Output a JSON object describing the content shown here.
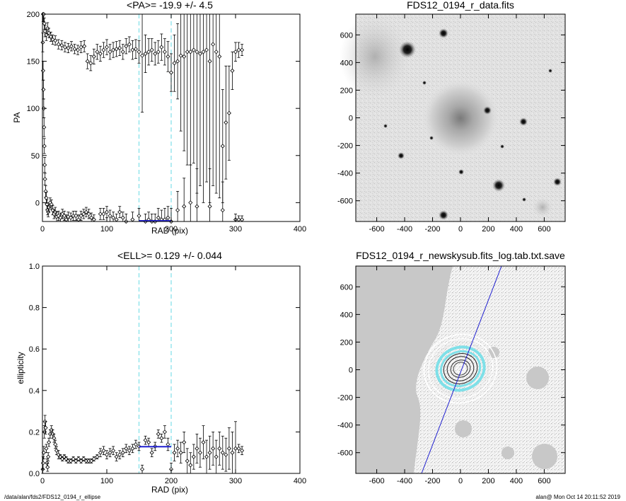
{
  "footer": {
    "path": "/data/alan/fds2/FDS12_0194_r_ellipse",
    "stamp": "alan@  Mon Oct 14 20:11:52 2019"
  },
  "colors": {
    "data": "#000000",
    "fit": "#2020d0",
    "marker": "#7fe0e8",
    "image_bg": "#c8c8c8"
  },
  "chart_data": [
    {
      "type": "scatter",
      "title": "<PA>= -19.9 +/-   4.5",
      "xlabel": "RAD (pix)",
      "ylabel": "PA",
      "xlim": [
        0,
        400
      ],
      "ylim": [
        -20,
        200
      ],
      "xticks": [
        "0",
        "100",
        "200",
        "300",
        "400"
      ],
      "yticks": [
        "0",
        "50",
        "100",
        "150",
        "200"
      ],
      "vlines": [
        150,
        200
      ],
      "fit_segment": {
        "x": [
          150,
          200
        ],
        "y": -20
      },
      "series": [
        {
          "x": [
            1,
            2,
            3,
            4,
            6,
            8,
            10,
            13,
            16,
            20,
            25,
            30,
            35,
            40,
            45,
            50,
            55,
            60,
            65,
            70,
            75,
            80,
            85,
            90,
            95,
            100,
            105,
            110,
            115,
            120,
            125,
            130,
            135,
            140,
            145,
            150,
            155,
            160,
            165,
            170,
            175,
            180,
            185,
            190,
            195,
            200,
            205,
            210,
            215,
            220,
            225,
            230,
            235,
            240,
            245,
            250,
            255,
            260,
            265,
            270,
            275,
            280,
            285,
            290,
            295,
            300,
            305,
            310
          ],
          "y": [
            200,
            200,
            190,
            182,
            178,
            185,
            180,
            176,
            173,
            172,
            168,
            167,
            165,
            164,
            166,
            163,
            162,
            165,
            166,
            150,
            148,
            155,
            160,
            158,
            162,
            165,
            160,
            162,
            163,
            164,
            160,
            166,
            168,
            162,
            163,
            160,
            156,
            158,
            160,
            162,
            158,
            160,
            165,
            160,
            155,
            138,
            148,
            150,
            156,
            155,
            160,
            160,
            162,
            160,
            158,
            160,
            162,
            150,
            168,
            160,
            155,
            60,
            85,
            95,
            140,
            160,
            162,
            162
          ],
          "err": [
            8,
            8,
            6,
            6,
            6,
            6,
            5,
            5,
            5,
            5,
            5,
            5,
            5,
            5,
            5,
            5,
            5,
            6,
            6,
            8,
            8,
            8,
            8,
            8,
            8,
            8,
            8,
            8,
            8,
            8,
            8,
            8,
            8,
            10,
            10,
            12,
            60,
            20,
            14,
            12,
            12,
            12,
            14,
            14,
            16,
            20,
            30,
            40,
            80,
            100,
            120,
            120,
            120,
            150,
            140,
            160,
            140,
            150,
            150,
            150,
            150,
            60,
            60,
            50,
            20,
            10,
            8,
            6
          ]
        },
        {
          "x": [
            0.5,
            1,
            1.5,
            2,
            2.5,
            3,
            3.5,
            4,
            5,
            6,
            7,
            8,
            9,
            10,
            12,
            14,
            16,
            18,
            20,
            22,
            25,
            28,
            31,
            34,
            37,
            40,
            44,
            48,
            52,
            56,
            60,
            64,
            68,
            72,
            76,
            80,
            90,
            95,
            100,
            105,
            110,
            115,
            120,
            125,
            130,
            140,
            150,
            160,
            165,
            170,
            175,
            180,
            185,
            190,
            195,
            200,
            210,
            220,
            230,
            240,
            260,
            280,
            300,
            305,
            310
          ],
          "y": [
            170,
            140,
            120,
            100,
            80,
            60,
            40,
            25,
            12,
            5,
            -2,
            -8,
            -10,
            -5,
            0,
            -2,
            -8,
            -12,
            -10,
            -15,
            -14,
            -16,
            -12,
            -14,
            -18,
            -15,
            -16,
            -14,
            -14,
            -18,
            -14,
            -12,
            -10,
            -12,
            -16,
            -18,
            -12,
            -12,
            -10,
            -14,
            -16,
            -18,
            -10,
            -16,
            -20,
            -18,
            -14,
            -20,
            -18,
            -20,
            -20,
            -16,
            -18,
            -18,
            -16,
            -20,
            -8,
            -4,
            0,
            -4,
            -4,
            -8,
            -18,
            -18,
            -18
          ],
          "err": [
            10,
            10,
            10,
            10,
            10,
            8,
            8,
            6,
            6,
            6,
            5,
            5,
            5,
            5,
            5,
            5,
            5,
            5,
            5,
            5,
            5,
            5,
            5,
            5,
            5,
            5,
            5,
            5,
            5,
            5,
            5,
            5,
            5,
            5,
            5,
            5,
            6,
            6,
            6,
            6,
            6,
            6,
            6,
            6,
            8,
            8,
            8,
            8,
            8,
            8,
            8,
            10,
            10,
            12,
            12,
            14,
            20,
            30,
            40,
            40,
            40,
            30,
            6,
            4,
            4
          ]
        }
      ]
    },
    {
      "type": "image",
      "title": "FDS12_0194_r_data.fits",
      "xlim": [
        -750,
        750
      ],
      "ylim": [
        -750,
        750
      ],
      "xticks": [
        "-600",
        "-400",
        "-200",
        "0",
        "200",
        "400",
        "600"
      ],
      "yticks": [
        "-600",
        "-400",
        "-200",
        "0",
        "200",
        "400",
        "600"
      ]
    },
    {
      "type": "scatter",
      "title": "<ELL>= 0.129 +/-  0.044",
      "xlabel": "RAD (pix)",
      "ylabel": "ellipticity",
      "xlim": [
        0,
        400
      ],
      "ylim": [
        0,
        1
      ],
      "xticks": [
        "0",
        "100",
        "200",
        "300",
        "400"
      ],
      "yticks": [
        "0.0",
        "0.2",
        "0.4",
        "0.6",
        "0.8",
        "1.0"
      ],
      "vlines": [
        150,
        200
      ],
      "fit_segment": {
        "x": [
          150,
          200
        ],
        "y": 0.129
      },
      "series": [
        {
          "x": [
            0.5,
            1,
            2,
            3,
            4,
            5,
            6,
            7,
            8,
            9,
            10,
            12,
            14,
            16,
            18,
            20,
            22,
            25,
            28,
            31,
            34,
            37,
            40,
            44,
            48,
            52,
            56,
            60,
            64,
            68,
            72,
            76,
            80,
            85,
            90,
            95,
            100,
            105,
            110,
            115,
            120,
            125,
            130,
            135,
            140,
            145,
            150,
            155,
            160,
            165,
            170,
            175,
            180,
            185,
            190,
            195,
            200,
            205,
            210,
            215,
            220,
            225,
            230,
            235,
            240,
            245,
            250,
            255,
            260,
            265,
            270,
            275,
            280,
            285,
            290,
            295,
            300,
            305,
            310
          ],
          "y": [
            0.02,
            0.05,
            0.1,
            0.2,
            0.25,
            0.22,
            0.12,
            0.05,
            0.03,
            0.08,
            0.15,
            0.19,
            0.21,
            0.19,
            0.17,
            0.14,
            0.11,
            0.09,
            0.08,
            0.07,
            0.08,
            0.07,
            0.06,
            0.06,
            0.07,
            0.06,
            0.07,
            0.06,
            0.07,
            0.06,
            0.06,
            0.06,
            0.07,
            0.08,
            0.1,
            0.11,
            0.09,
            0.1,
            0.11,
            0.08,
            0.09,
            0.1,
            0.12,
            0.11,
            0.12,
            0.14,
            0.13,
            0.02,
            0.16,
            0.15,
            0.1,
            0.13,
            0.19,
            0.17,
            0.2,
            0.14,
            0.02,
            0.1,
            0.12,
            0.1,
            0.15,
            0.06,
            0.04,
            0.08,
            0.12,
            0.1,
            0.15,
            0.08,
            0.1,
            0.12,
            0.08,
            0.12,
            0.1,
            0.09,
            0.12,
            0.1,
            0.12,
            0.12,
            0.11
          ],
          "err": [
            0.03,
            0.03,
            0.03,
            0.03,
            0.03,
            0.03,
            0.02,
            0.02,
            0.02,
            0.02,
            0.02,
            0.02,
            0.02,
            0.02,
            0.02,
            0.02,
            0.02,
            0.02,
            0.01,
            0.01,
            0.01,
            0.01,
            0.01,
            0.01,
            0.01,
            0.01,
            0.01,
            0.01,
            0.01,
            0.01,
            0.01,
            0.01,
            0.01,
            0.01,
            0.02,
            0.02,
            0.02,
            0.02,
            0.02,
            0.02,
            0.02,
            0.02,
            0.02,
            0.02,
            0.02,
            0.02,
            0.02,
            0.02,
            0.02,
            0.02,
            0.02,
            0.02,
            0.02,
            0.02,
            0.03,
            0.03,
            0.03,
            0.04,
            0.04,
            0.05,
            0.05,
            0.06,
            0.06,
            0.06,
            0.07,
            0.07,
            0.08,
            0.08,
            0.08,
            0.08,
            0.08,
            0.08,
            0.08,
            0.08,
            0.1,
            0.1,
            0.13,
            0.02,
            0.02
          ]
        }
      ]
    },
    {
      "type": "image",
      "title": "FDS12_0194_r_newskysub.fits_log.tab.txt.save",
      "xlim": [
        -750,
        750
      ],
      "ylim": [
        -750,
        750
      ],
      "xticks": [
        "-600",
        "-400",
        "-200",
        "0",
        "200",
        "400",
        "600"
      ],
      "yticks": [
        "-600",
        "-400",
        "-200",
        "0",
        "200",
        "400",
        "600"
      ]
    }
  ]
}
